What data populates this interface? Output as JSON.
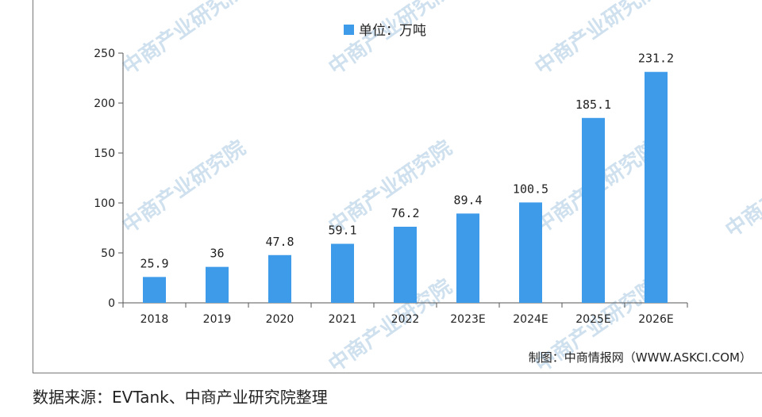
{
  "legend": {
    "label": "单位：万吨",
    "color": "#3d9be9"
  },
  "credit": "制图：中商情报网（WWW.ASKCI.COM）",
  "watermark_text": "中商产业研究院",
  "source": "数据来源：EVTank、中商产业研究院整理",
  "chart_data": {
    "type": "bar",
    "categories": [
      "2018",
      "2019",
      "2020",
      "2021",
      "2022",
      "2023E",
      "2024E",
      "2025E",
      "2026E"
    ],
    "values": [
      25.9,
      36,
      47.8,
      59.1,
      76.2,
      89.4,
      100.5,
      185.1,
      231.2
    ],
    "value_labels": [
      "25.9",
      "36",
      "47.8",
      "59.1",
      "76.2",
      "89.4",
      "100.5",
      "185.1",
      "231.2"
    ],
    "ylim": [
      0,
      250
    ],
    "yticks": [
      0,
      50,
      100,
      150,
      200,
      250
    ],
    "bar_color": "#3d9be9",
    "grid": false,
    "legend_position": "top-center"
  }
}
